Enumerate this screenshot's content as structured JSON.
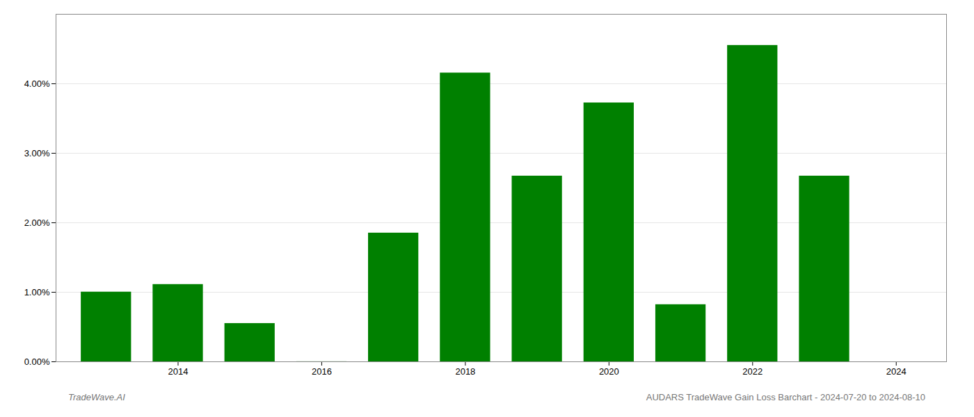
{
  "chart_data": {
    "type": "bar",
    "x": [
      2013,
      2014,
      2015,
      2016,
      2017,
      2018,
      2019,
      2020,
      2021,
      2022,
      2023
    ],
    "values": [
      0.01003,
      0.01112,
      0.00551,
      1e-05,
      0.01852,
      0.04155,
      0.02672,
      0.03725,
      0.00822,
      0.04552,
      0.02672
    ],
    "color": "#008000",
    "xlim": [
      2012.3,
      2024.7
    ],
    "xticks": [
      2014,
      2016,
      2018,
      2020,
      2022,
      2024
    ],
    "ylim": [
      0,
      0.05
    ],
    "yticks": [
      {
        "value": 0.0,
        "label": "0.00%"
      },
      {
        "value": 0.01,
        "label": "1.00%"
      },
      {
        "value": 0.02,
        "label": "2.00%"
      },
      {
        "value": 0.03,
        "label": "3.00%"
      },
      {
        "value": 0.04,
        "label": "4.00%"
      }
    ],
    "grid": true,
    "annotations": [
      "TradeWave.AI",
      "AUDARS TradeWave Gain Loss Barchart - 2024-07-20 to 2024-08-10"
    ]
  }
}
